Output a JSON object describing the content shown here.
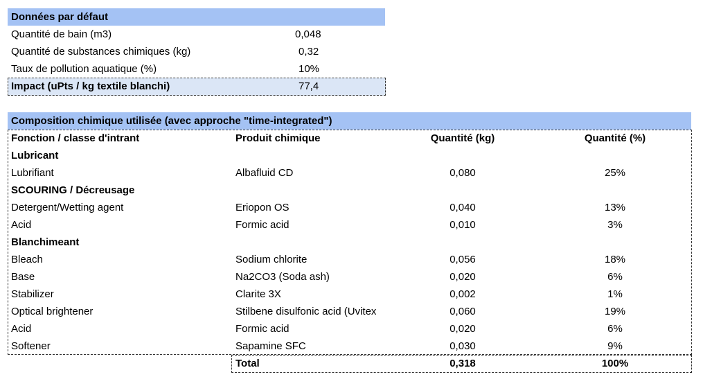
{
  "defaults": {
    "title": "Données par défaut",
    "rows": [
      {
        "label": "Quantité de bain (m3)",
        "value": "0,048"
      },
      {
        "label": "Quantité de substances chimiques (kg)",
        "value": "0,32"
      },
      {
        "label": "Taux de pollution aquatique (%)",
        "value": "10%"
      }
    ],
    "impact": {
      "label": "Impact (uPts / kg textile blanchi)",
      "value": "77,4"
    }
  },
  "composition": {
    "title": "Composition chimique utilisée (avec approche \"time-integrated\")",
    "headers": {
      "fonction": "Fonction / classe d'intrant",
      "produit": "Produit chimique",
      "quantite_kg": "Quantité (kg)",
      "quantite_pct": "Quantité (%)"
    },
    "rows": [
      {
        "type": "group",
        "fonction": "Lubricant"
      },
      {
        "type": "item",
        "fonction": "Lubrifiant",
        "produit": "Albafluid CD",
        "kg": "0,080",
        "pct": "25%"
      },
      {
        "type": "group",
        "fonction": "SCOURING / Décreusage"
      },
      {
        "type": "item",
        "fonction": "Detergent/Wetting agent",
        "produit": "Eriopon OS",
        "kg": "0,040",
        "pct": "13%"
      },
      {
        "type": "item",
        "fonction": "Acid",
        "produit": "Formic acid",
        "kg": "0,010",
        "pct": "3%"
      },
      {
        "type": "group",
        "fonction": "Blanchimeant"
      },
      {
        "type": "item",
        "fonction": "Bleach",
        "produit": "Sodium chlorite",
        "kg": "0,056",
        "pct": "18%"
      },
      {
        "type": "item",
        "fonction": "Base",
        "produit": "Na2CO3 (Soda ash)",
        "kg": "0,020",
        "pct": "6%"
      },
      {
        "type": "item",
        "fonction": "Stabilizer",
        "produit": "Clarite 3X",
        "kg": "0,002",
        "pct": "1%"
      },
      {
        "type": "item",
        "fonction": "Optical brightener",
        "produit": "Stilbene disulfonic acid (Uvitex",
        "kg": "0,060",
        "pct": "19%"
      },
      {
        "type": "item",
        "fonction": "Acid",
        "produit": "Formic acid",
        "kg": "0,020",
        "pct": "6%"
      },
      {
        "type": "item",
        "fonction": "Softener",
        "produit": "Sapamine SFC",
        "kg": "0,030",
        "pct": "9%"
      }
    ],
    "total": {
      "label": "Total",
      "kg": "0,318",
      "pct": "100%"
    }
  }
}
